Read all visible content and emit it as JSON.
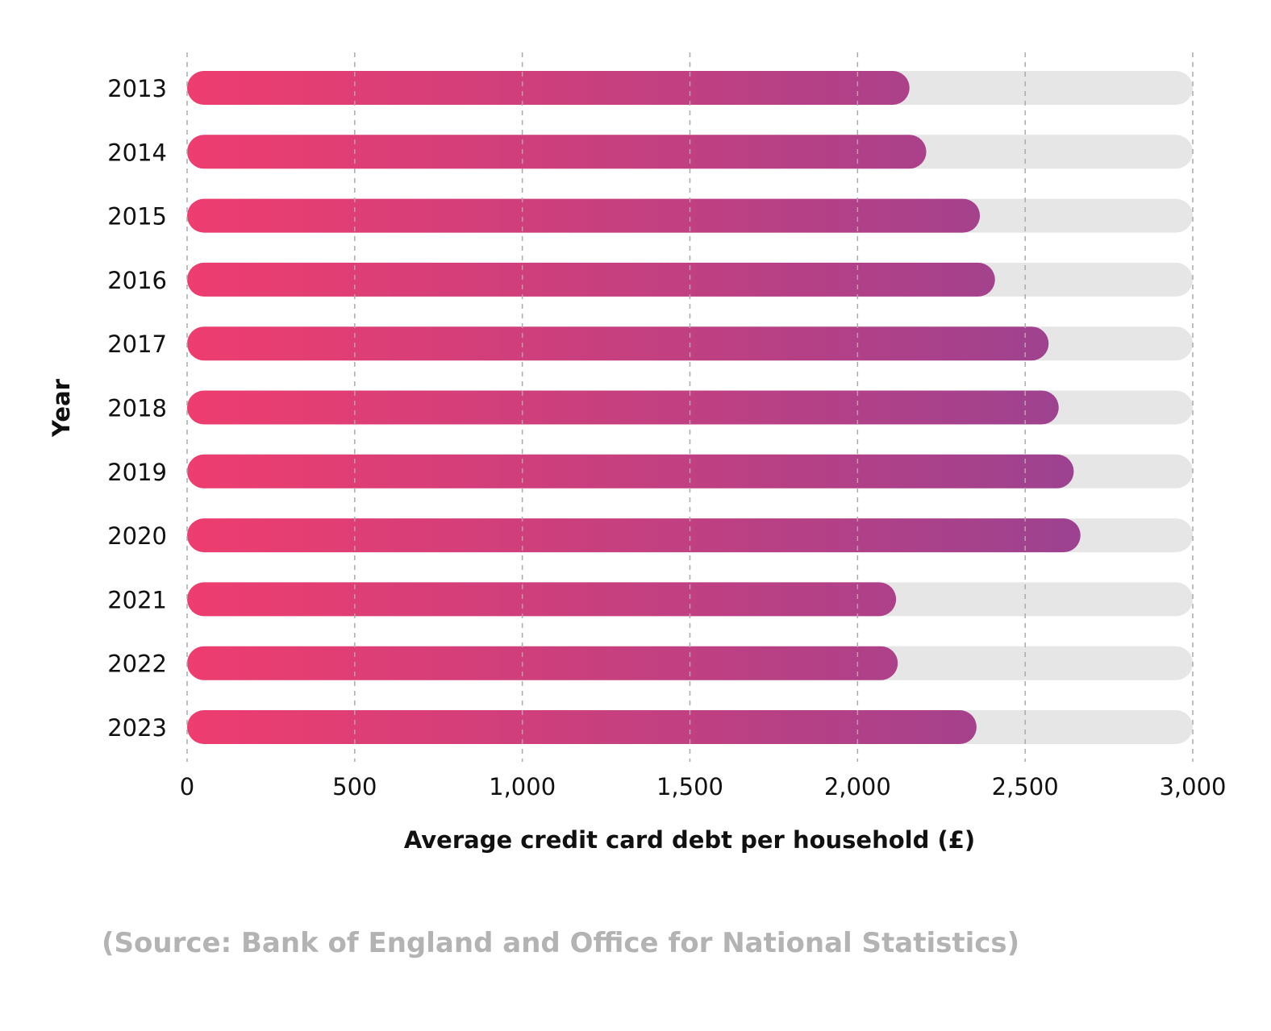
{
  "chart_data": {
    "type": "bar",
    "orientation": "horizontal",
    "categories": [
      "2013",
      "2014",
      "2015",
      "2016",
      "2017",
      "2018",
      "2019",
      "2020",
      "2021",
      "2022",
      "2023"
    ],
    "values": [
      2155,
      2205,
      2365,
      2410,
      2570,
      2600,
      2645,
      2665,
      2115,
      2120,
      2355
    ],
    "xlabel": "Average credit card debt per household (£)",
    "ylabel": "Year",
    "xlim": [
      0,
      3000
    ],
    "xticks": [
      0,
      500,
      1000,
      1500,
      2000,
      2500,
      3000
    ],
    "xtick_labels": [
      "0",
      "500",
      "1,000",
      "1,500",
      "2,000",
      "2,500",
      "3,000"
    ],
    "grid": "vertical dashed",
    "colors": {
      "bar_start": "#ee3d6f",
      "bar_end": "#9c4290",
      "track": "#e6e6e6",
      "grid": "#aaaaaa"
    }
  },
  "source": "(Source: Bank of England and Office for National Statistics)"
}
